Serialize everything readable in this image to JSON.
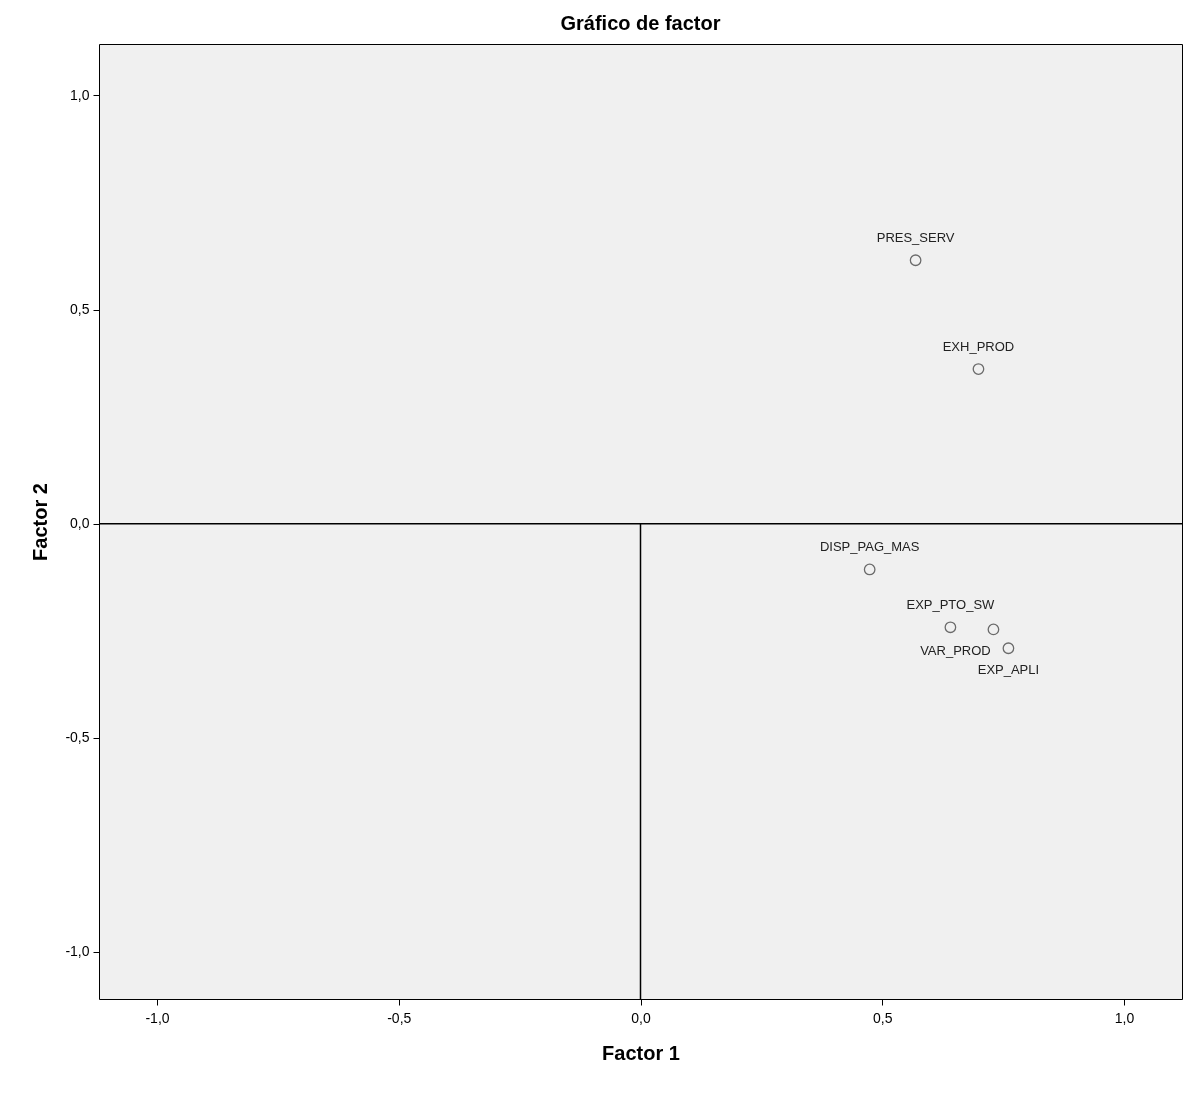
{
  "chart_data": {
    "type": "scatter",
    "title": "Gráfico de factor",
    "xlabel": "Factor 1",
    "ylabel": "Factor 2",
    "x": [
      0.569,
      0.699,
      0.474,
      0.641,
      0.73,
      0.761
    ],
    "series": [
      {
        "color": "#333333",
        "values": [
          0.615,
          0.361,
          -0.107,
          -0.242,
          -0.247,
          -0.291
        ]
      }
    ],
    "annotations": [
      {
        "text": "PRES_SERV",
        "x": 0.569,
        "y": 0.615
      },
      {
        "text": "EXH_PROD",
        "x": 0.699,
        "y": 0.361
      },
      {
        "text": "DISP_PAG_MAS",
        "x": 0.474,
        "y": -0.107
      },
      {
        "text": "EXP_PTO_SW",
        "x": 0.641,
        "y": -0.242
      },
      {
        "text": "VAR_PROD",
        "x": 0.73,
        "y": -0.247
      },
      {
        "text": "EXP_APLI",
        "x": 0.761,
        "y": -0.291
      }
    ],
    "xlim": [
      -1.12,
      1.12
    ],
    "ylim": [
      -1.11,
      1.12
    ],
    "xticks": [
      {
        "value": -1,
        "label": "-1,0"
      },
      {
        "value": -0.5,
        "label": "-0,5"
      },
      {
        "value": 0,
        "label": "0,0"
      },
      {
        "value": 0.5,
        "label": "0,5"
      },
      {
        "value": 1,
        "label": "1,0"
      }
    ],
    "yticks": [
      {
        "value": -1,
        "label": "-1,0"
      },
      {
        "value": -0.5,
        "label": "-0,5"
      },
      {
        "value": 0,
        "label": "0,0"
      },
      {
        "value": 0.5,
        "label": "0,5"
      },
      {
        "value": 1,
        "label": "1,0"
      }
    ],
    "ref_lines": [
      {
        "axis": "x",
        "value": 0,
        "color": "#000000"
      },
      {
        "axis": "y",
        "value": 0,
        "color": "#000000"
      }
    ],
    "grid": false,
    "marker": "circle"
  }
}
